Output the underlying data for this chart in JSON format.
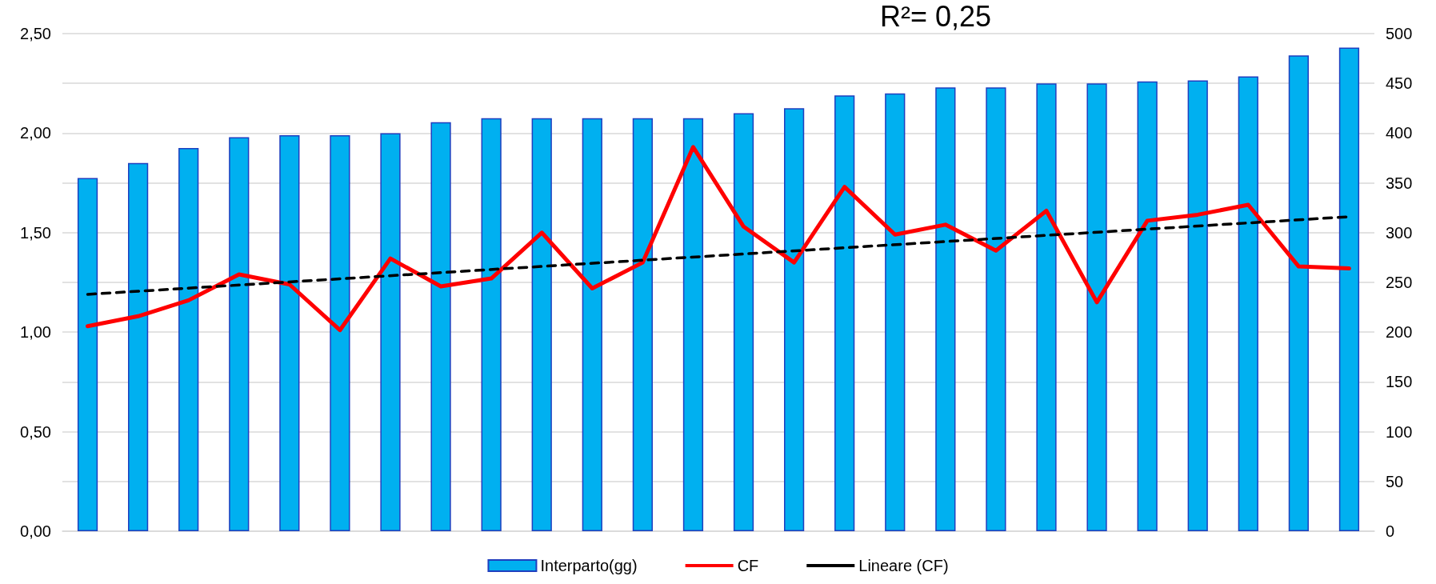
{
  "chart_data": {
    "type": "bar",
    "categories": [
      null,
      null,
      null,
      null,
      null,
      null,
      null,
      null,
      null,
      null,
      null,
      null,
      null,
      null,
      null,
      null,
      null,
      null,
      null,
      null,
      null,
      null,
      null,
      null,
      null,
      null
    ],
    "series": [
      {
        "name": "Interparto(gg)",
        "axis": "y2",
        "color": "#00b0f0",
        "values": [
          355,
          370,
          385,
          396,
          398,
          398,
          400,
          411,
          415,
          415,
          415,
          415,
          415,
          420,
          425,
          438,
          440,
          446,
          446,
          450,
          450,
          452,
          453,
          457,
          478,
          486
        ]
      },
      {
        "name": "CF",
        "type": "line",
        "color": "#ff0000",
        "marker": "none",
        "values": [
          1.03,
          1.08,
          1.16,
          1.29,
          1.24,
          1.01,
          1.37,
          1.23,
          1.27,
          1.5,
          1.22,
          1.35,
          1.93,
          1.53,
          1.35,
          1.73,
          1.49,
          1.54,
          1.41,
          1.61,
          1.15,
          1.56,
          1.59,
          1.64,
          1.33,
          1.32
        ]
      },
      {
        "name": "Lineare (CF)",
        "type": "line",
        "color": "#000000",
        "line_style": "dashed",
        "marker": "none",
        "values": [
          1.19,
          null,
          null,
          null,
          null,
          null,
          null,
          null,
          null,
          null,
          null,
          null,
          null,
          null,
          null,
          null,
          null,
          null,
          null,
          null,
          null,
          null,
          null,
          null,
          null,
          1.58
        ]
      }
    ],
    "ylim": [
      0,
      2.5
    ],
    "yticks": [
      {
        "value": 0,
        "label": "0,00"
      },
      {
        "value": 0.25,
        "label": null
      },
      {
        "value": 0.5,
        "label": "0,50"
      },
      {
        "value": 0.75,
        "label": null
      },
      {
        "value": 1,
        "label": "1,00"
      },
      {
        "value": 1.25,
        "label": null
      },
      {
        "value": 1.5,
        "label": "1,50"
      },
      {
        "value": 1.75,
        "label": null
      },
      {
        "value": 2,
        "label": "2,00"
      },
      {
        "value": 2.25,
        "label": null
      },
      {
        "value": 2.5,
        "label": "2,50"
      }
    ],
    "y2lim": [
      0,
      500
    ],
    "y2ticks": [
      0,
      50,
      100,
      150,
      200,
      250,
      300,
      350,
      400,
      450,
      500
    ],
    "annotations": [
      "R²= 0,25"
    ],
    "grid": "y",
    "legend": "bottom"
  }
}
